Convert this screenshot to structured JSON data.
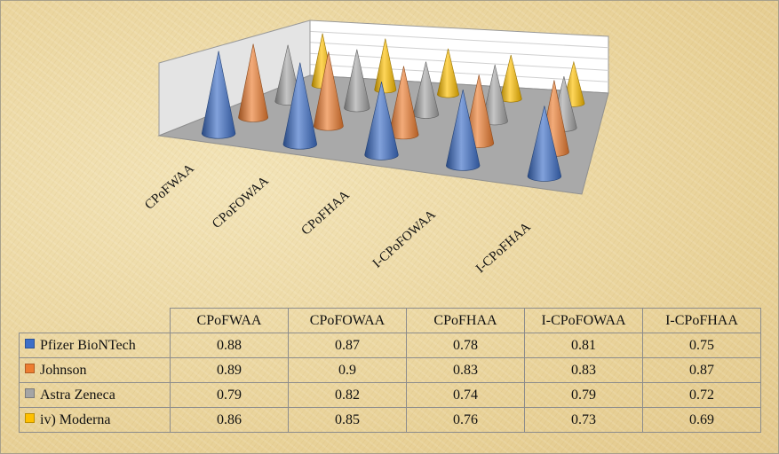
{
  "chart_data": {
    "type": "3d-cone",
    "categories": [
      "CPoFWAA",
      "CPoFOWAA",
      "CPoFHAA",
      "I-CPoFOWAA",
      "I-CPoFHAA"
    ],
    "series": [
      {
        "name": "Pfizer BioNTech",
        "values": [
          0.88,
          0.87,
          0.78,
          0.81,
          0.75
        ],
        "color": "#3d6fc7"
      },
      {
        "name": "Johnson",
        "values": [
          0.89,
          0.9,
          0.83,
          0.83,
          0.87
        ],
        "color": "#ed7d31"
      },
      {
        "name": "Astra Zeneca",
        "values": [
          0.79,
          0.82,
          0.74,
          0.79,
          0.72
        ],
        "color": "#a5a5a5"
      },
      {
        "name": "iv) Moderna",
        "values": [
          0.86,
          0.85,
          0.76,
          0.73,
          0.69
        ],
        "color": "#ffc000"
      }
    ],
    "data_table": true,
    "grid": true
  }
}
